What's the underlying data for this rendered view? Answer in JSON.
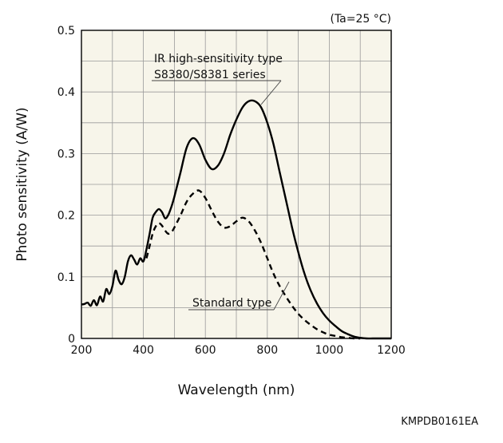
{
  "chart_data": {
    "type": "line",
    "xlabel": "Wavelength (nm)",
    "ylabel": "Photo sensitivity (A/W)",
    "condition": "(Ta=25 °C)",
    "figure_code": "KMPDB0161EA",
    "xlim": [
      200,
      1200
    ],
    "ylim": [
      0,
      0.5
    ],
    "xticks": [
      "200",
      "400",
      "600",
      "800",
      "1000",
      "1200"
    ],
    "yticks": [
      "0",
      "0.1",
      "0.2",
      "0.3",
      "0.4",
      "0.5"
    ],
    "grid": true,
    "series": [
      {
        "name": "IR high-sensitivity type S8380/S8381 series",
        "label_lines": [
          "IR high-sensitivity type",
          "S8380/S8381 series"
        ],
        "line_style": "solid",
        "color": "#000000",
        "x": [
          200,
          210,
          220,
          230,
          240,
          250,
          260,
          270,
          280,
          290,
          300,
          310,
          320,
          330,
          340,
          350,
          360,
          370,
          380,
          390,
          400,
          410,
          420,
          430,
          440,
          450,
          460,
          470,
          480,
          490,
          500,
          520,
          540,
          560,
          580,
          600,
          620,
          640,
          660,
          680,
          700,
          720,
          740,
          760,
          780,
          800,
          820,
          840,
          860,
          880,
          900,
          920,
          940,
          960,
          980,
          1000,
          1020,
          1040,
          1060,
          1080,
          1100,
          1120,
          1140,
          1160,
          1180,
          1200
        ],
        "values": [
          0.055,
          0.056,
          0.058,
          0.053,
          0.062,
          0.054,
          0.068,
          0.06,
          0.08,
          0.072,
          0.085,
          0.11,
          0.095,
          0.088,
          0.1,
          0.125,
          0.135,
          0.128,
          0.12,
          0.13,
          0.125,
          0.145,
          0.17,
          0.196,
          0.205,
          0.21,
          0.205,
          0.195,
          0.2,
          0.213,
          0.23,
          0.27,
          0.31,
          0.325,
          0.315,
          0.29,
          0.275,
          0.28,
          0.3,
          0.33,
          0.355,
          0.375,
          0.385,
          0.385,
          0.375,
          0.35,
          0.315,
          0.27,
          0.225,
          0.18,
          0.14,
          0.105,
          0.078,
          0.057,
          0.041,
          0.029,
          0.02,
          0.012,
          0.007,
          0.003,
          0.001,
          0.0,
          0.0,
          0.0,
          0.0,
          0.0
        ]
      },
      {
        "name": "Standard type",
        "label_lines": [
          "Standard type"
        ],
        "line_style": "dashed",
        "color": "#000000",
        "x": [
          410,
          420,
          430,
          440,
          450,
          460,
          470,
          480,
          490,
          500,
          520,
          540,
          560,
          580,
          600,
          620,
          640,
          660,
          680,
          700,
          720,
          740,
          760,
          780,
          800,
          820,
          840,
          860,
          880,
          900,
          920,
          940,
          960,
          980,
          1000,
          1020,
          1040,
          1060,
          1080,
          1100
        ],
        "values": [
          0.13,
          0.15,
          0.17,
          0.182,
          0.187,
          0.183,
          0.175,
          0.17,
          0.172,
          0.18,
          0.2,
          0.222,
          0.235,
          0.24,
          0.228,
          0.208,
          0.19,
          0.18,
          0.182,
          0.19,
          0.196,
          0.19,
          0.175,
          0.155,
          0.13,
          0.105,
          0.085,
          0.068,
          0.053,
          0.04,
          0.03,
          0.022,
          0.015,
          0.01,
          0.006,
          0.004,
          0.002,
          0.001,
          0.0,
          0.0
        ]
      }
    ]
  }
}
